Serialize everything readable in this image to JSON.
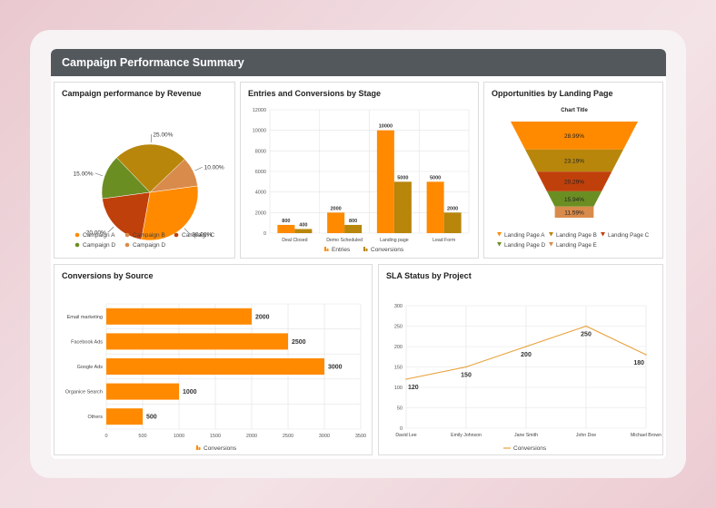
{
  "header": {
    "title": "Campaign Performance Summary"
  },
  "colors": {
    "orange": "#ff8a00",
    "olive": "#b8860b",
    "red": "#c0400b",
    "green": "#6b8e23",
    "peach": "#d98b4b",
    "header_bg": "#53585d"
  },
  "cards": {
    "revenue": "Campaign performance by Revenue",
    "stages": "Entries and Conversions by Stage",
    "landing": "Opportunities by Landing Page",
    "source": "Conversions by Source",
    "sla": "SLA Status by Project"
  },
  "chart_data": [
    {
      "type": "pie",
      "title": "Campaign performance by Revenue",
      "slices": [
        {
          "name": "Campaign A",
          "value": 30,
          "label": "30.00%",
          "color": "#ff8a00"
        },
        {
          "name": "Campaign B",
          "value": 10,
          "label": "10.00%",
          "color": "#d98b4b"
        },
        {
          "name": "Campaign C",
          "value": 25,
          "label": "25.00%",
          "color": "#b8860b"
        },
        {
          "name": "Campaign D",
          "value": 15,
          "label": "15.00%",
          "color": "#6b8e23"
        },
        {
          "name": "Campaign D",
          "value": 20,
          "label": "20.00%",
          "color": "#c0400b"
        }
      ],
      "legend": [
        {
          "name": "Campaign A",
          "color": "#ff8a00"
        },
        {
          "name": "Campaign B",
          "color": "#d98b4b"
        },
        {
          "name": "Campaign C",
          "color": "#c0400b"
        },
        {
          "name": "Campaign D",
          "color": "#6b8e23"
        },
        {
          "name": "Campaign D",
          "color": "#d98b4b"
        }
      ],
      "legend_position": "bottom"
    },
    {
      "type": "bar",
      "title": "Entries and Conversions by Stage",
      "categories": [
        "Deal Closed",
        "Demo Scheduled",
        "Landing page",
        "Lead Form"
      ],
      "series": [
        {
          "name": "Entries",
          "values": [
            800,
            2000,
            10000,
            5000
          ],
          "color": "#ff8a00"
        },
        {
          "name": "Conversions",
          "values": [
            400,
            800,
            5000,
            2000
          ],
          "color": "#b8860b"
        }
      ],
      "yticks": [
        0,
        2000,
        4000,
        6000,
        8000,
        10000,
        12000
      ],
      "ylim": [
        0,
        12000
      ],
      "grid": true,
      "legend_position": "bottom"
    },
    {
      "type": "funnel",
      "title": "Opportunities by Landing Page",
      "chart_title": "Chart Title",
      "stages": [
        {
          "label": "28.99%",
          "value": 28.99,
          "color": "#ff8a00"
        },
        {
          "label": "23.19%",
          "value": 23.19,
          "color": "#b8860b"
        },
        {
          "label": "20.29%",
          "value": 20.29,
          "color": "#c0400b"
        },
        {
          "label": "15.94%",
          "value": 15.94,
          "color": "#6b8e23"
        },
        {
          "label": "11.59%",
          "value": 11.59,
          "color": "#d98b4b"
        }
      ],
      "legend": [
        {
          "name": "Landing Page A",
          "color": "#ff8a00"
        },
        {
          "name": "Landing Page B",
          "color": "#b8860b"
        },
        {
          "name": "Landing Page C",
          "color": "#c0400b"
        },
        {
          "name": "Landing Page D",
          "color": "#6b8e23"
        },
        {
          "name": "Landing Page E",
          "color": "#d98b4b"
        }
      ],
      "legend_position": "bottom"
    },
    {
      "type": "bar",
      "orientation": "horizontal",
      "title": "Conversions by Source",
      "categories": [
        "Email marketing",
        "Facebook Ads",
        "Google Ads",
        "Organice Search",
        "Others"
      ],
      "series": [
        {
          "name": "Conversions",
          "values": [
            2000,
            2500,
            3000,
            1000,
            500
          ],
          "color": "#ff8a00"
        }
      ],
      "xticks": [
        0,
        500,
        1000,
        1500,
        2000,
        2500,
        3000,
        3500
      ],
      "xlim": [
        0,
        3500
      ],
      "grid": true,
      "legend_position": "bottom"
    },
    {
      "type": "line",
      "title": "SLA Status by Project",
      "categories": [
        "David Lee",
        "Emily Johnson",
        "Jane Smith",
        "John Doe",
        "Michael Brown"
      ],
      "series": [
        {
          "name": "Conversions",
          "values": [
            120,
            150,
            200,
            250,
            180
          ],
          "color": "#e8a13a"
        }
      ],
      "yticks": [
        0,
        50,
        100,
        150,
        200,
        250,
        300
      ],
      "ylim": [
        0,
        300
      ],
      "grid": true,
      "legend_position": "bottom"
    }
  ]
}
